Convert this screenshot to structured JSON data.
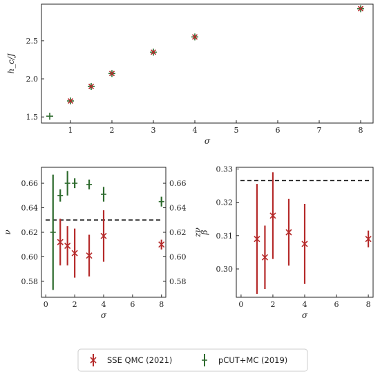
{
  "colors": {
    "sse": "#b52a2a",
    "pcut": "#2e6b2e",
    "reference_line": "#111111",
    "frame": "#222222"
  },
  "legend": {
    "placement": "bottom-center",
    "items": [
      {
        "label": "SSE QMC (2021)",
        "color": "#b52a2a",
        "marker": "x-with-errorbar"
      },
      {
        "label": "pCUT+MC (2019)",
        "color": "#2e6b2e",
        "marker": "plus-with-errorbar"
      }
    ]
  },
  "chart_data": [
    {
      "id": "hc",
      "type": "scatter",
      "xlabel": "σ",
      "ylabel": "h_c/J",
      "xlim": [
        0.3,
        8.3
      ],
      "ylim": [
        1.42,
        2.98
      ],
      "xticks": [
        1,
        2,
        3,
        4,
        5,
        6,
        7,
        8
      ],
      "yticks": [
        1.5,
        2.0,
        2.5
      ],
      "ytick_labels": [
        "1.5",
        "2.0",
        "2.5"
      ],
      "grid": false,
      "series": [
        {
          "name": "SSE QMC (2021)",
          "marker": "x",
          "x": [
            1,
            1.5,
            2,
            3,
            4,
            8
          ],
          "y": [
            1.71,
            1.9,
            2.07,
            2.35,
            2.55,
            2.92
          ]
        },
        {
          "name": "pCUT+MC (2019)",
          "marker": "+",
          "x": [
            0.5,
            1,
            1.5,
            2,
            3,
            4,
            8
          ],
          "y": [
            1.51,
            1.71,
            1.9,
            2.07,
            2.35,
            2.55,
            2.92
          ]
        }
      ]
    },
    {
      "id": "nu",
      "type": "scatter",
      "xlabel": "σ",
      "ylabel": "ν",
      "ylabel_right": "zν",
      "xlim": [
        -0.3,
        8.3
      ],
      "ylim": [
        0.567,
        0.673
      ],
      "ylim_right": [
        0.567,
        0.673
      ],
      "xticks": [
        0,
        2,
        4,
        6,
        8
      ],
      "yticks": [
        0.58,
        0.6,
        0.62,
        0.64,
        0.66
      ],
      "ytick_labels": [
        "0.58",
        "0.60",
        "0.62",
        "0.64",
        "0.66"
      ],
      "grid": false,
      "reference_line": {
        "y": 0.63,
        "style": "dashed"
      },
      "series": [
        {
          "name": "SSE QMC (2021)",
          "marker": "x",
          "axis": "left",
          "x": [
            1,
            1.5,
            2,
            3,
            4,
            8
          ],
          "y": [
            0.612,
            0.609,
            0.603,
            0.601,
            0.617,
            0.61
          ],
          "err": [
            0.019,
            0.016,
            0.02,
            0.017,
            0.021,
            0.004
          ]
        },
        {
          "name": "pCUT+MC (2019)",
          "marker": "+",
          "axis": "right",
          "x": [
            0.5,
            1,
            1.5,
            2,
            3,
            4,
            8
          ],
          "y": [
            0.62,
            0.65,
            0.66,
            0.66,
            0.659,
            0.651,
            0.645
          ],
          "err": [
            0.047,
            0.005,
            0.01,
            0.004,
            0.004,
            0.006,
            0.004
          ]
        }
      ]
    },
    {
      "id": "beta",
      "type": "scatter",
      "xlabel": "σ",
      "ylabel": "β",
      "xlim": [
        -0.3,
        8.3
      ],
      "ylim": [
        0.2915,
        0.3305
      ],
      "xticks": [
        0,
        2,
        4,
        6,
        8
      ],
      "yticks": [
        0.3,
        0.31,
        0.32,
        0.33
      ],
      "ytick_labels": [
        "0.30",
        "0.31",
        "0.32",
        "0.33"
      ],
      "grid": false,
      "reference_line": {
        "y": 0.3265,
        "style": "dashed"
      },
      "series": [
        {
          "name": "SSE QMC (2021)",
          "marker": "x",
          "x": [
            1,
            1.5,
            2,
            3,
            4,
            8
          ],
          "y": [
            0.309,
            0.3035,
            0.316,
            0.311,
            0.3075,
            0.309
          ],
          "err": [
            0.0165,
            0.0095,
            0.013,
            0.01,
            0.012,
            0.0025
          ]
        }
      ]
    }
  ]
}
